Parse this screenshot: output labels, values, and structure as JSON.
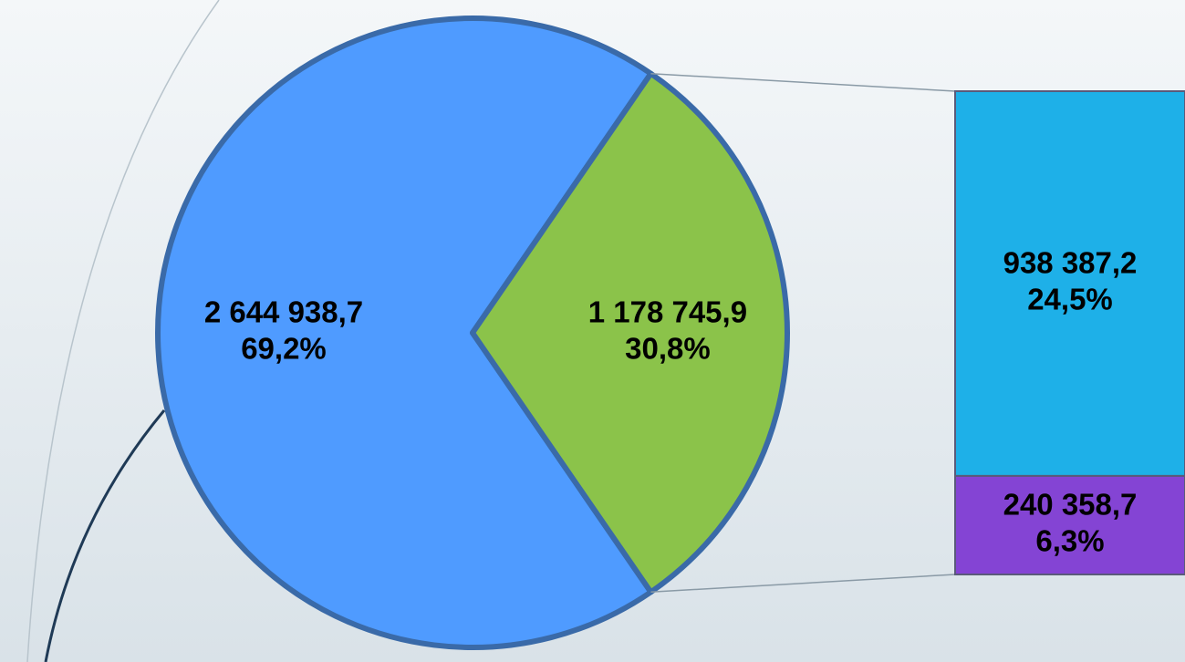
{
  "chart_data": {
    "type": "bar-of-pie",
    "values": [
      2644938.7,
      1178745.9
    ],
    "value_labels": [
      "2 644 938,7",
      "1 178 745,9"
    ],
    "percent_values": [
      69.2,
      30.8
    ],
    "percent_labels": [
      "69,2%",
      "30,8%"
    ],
    "colors": [
      "#4f9bff",
      "#8bc34a"
    ],
    "breakdown": {
      "values": [
        938387.2,
        240358.7
      ],
      "value_labels": [
        "938 387,2",
        "240 358,7"
      ],
      "percent_values": [
        24.5,
        6.3
      ],
      "percent_labels": [
        "24,5%",
        "6,3%"
      ],
      "colors": [
        "#1eb0e8",
        "#8444d4"
      ]
    }
  }
}
